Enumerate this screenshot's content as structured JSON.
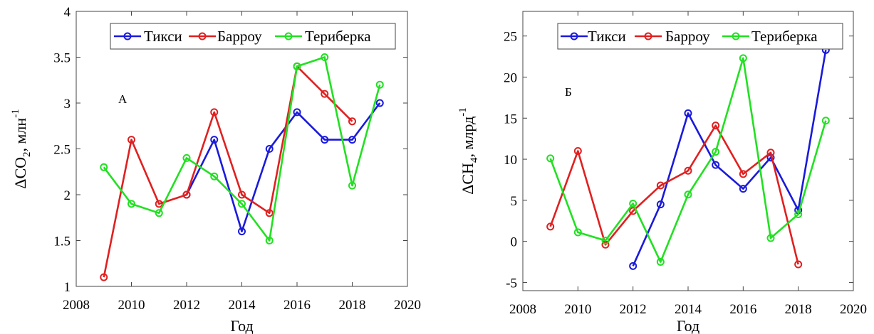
{
  "chart_data": [
    {
      "type": "line",
      "panel_label": "А",
      "xlabel": "Год",
      "ylabel": {
        "base": "ΔCO",
        "sub": "2",
        "rest": ", млн",
        "sup": "-1"
      },
      "xlim": [
        2008,
        2020
      ],
      "ylim": [
        1,
        4
      ],
      "xticks": [
        "2008",
        "2010",
        "2012",
        "2014",
        "2016",
        "2018",
        "2020"
      ],
      "yticks": [
        "1",
        "1.5",
        "2",
        "2.5",
        "3",
        "3.5",
        "4"
      ],
      "grid": false,
      "legend_position": "top",
      "series": [
        {
          "name": "Тикси",
          "color": "#1a1adb",
          "x": [
            2012,
            2013,
            2014,
            2015,
            2016,
            2017,
            2018,
            2019
          ],
          "y": [
            2.0,
            2.6,
            1.6,
            2.5,
            2.9,
            2.6,
            2.6,
            3.0
          ]
        },
        {
          "name": "Барроу",
          "color": "#e02020",
          "x": [
            2009,
            2010,
            2011,
            2012,
            2013,
            2014,
            2015,
            2016,
            2017,
            2018
          ],
          "y": [
            1.1,
            2.6,
            1.9,
            2.0,
            2.9,
            2.0,
            1.8,
            3.4,
            3.1,
            2.8
          ]
        },
        {
          "name": "Териберка",
          "color": "#22e022",
          "x": [
            2009,
            2010,
            2011,
            2012,
            2013,
            2014,
            2015,
            2016,
            2017,
            2018,
            2019
          ],
          "y": [
            2.3,
            1.9,
            1.8,
            2.4,
            2.2,
            1.9,
            1.5,
            3.4,
            3.5,
            2.1,
            3.2
          ]
        }
      ]
    },
    {
      "type": "line",
      "panel_label": "Б",
      "xlabel": "Год",
      "ylabel": {
        "base": "ΔCH",
        "sub": "4",
        "rest": ", млрд",
        "sup": "-1"
      },
      "xlim": [
        2008,
        2020
      ],
      "ylim": [
        -6,
        28
      ],
      "xticks": [
        "2008",
        "2010",
        "2012",
        "2014",
        "2016",
        "2018",
        "2020"
      ],
      "yticks": [
        "-5",
        "0",
        "5",
        "10",
        "15",
        "20",
        "25"
      ],
      "grid": false,
      "legend_position": "top",
      "series": [
        {
          "name": "Тикси",
          "color": "#1a1adb",
          "x": [
            2012,
            2013,
            2014,
            2015,
            2016,
            2017,
            2018,
            2019
          ],
          "y": [
            -3.0,
            4.5,
            15.6,
            9.3,
            6.4,
            10.2,
            3.8,
            23.3
          ]
        },
        {
          "name": "Барроу",
          "color": "#e02020",
          "x": [
            2009,
            2010,
            2011,
            2012,
            2013,
            2014,
            2015,
            2016,
            2017,
            2018
          ],
          "y": [
            1.8,
            11.0,
            -0.4,
            3.7,
            6.8,
            8.6,
            14.1,
            8.2,
            10.8,
            -2.8
          ]
        },
        {
          "name": "Териберка",
          "color": "#22e022",
          "x": [
            2009,
            2010,
            2011,
            2012,
            2013,
            2014,
            2015,
            2016,
            2017,
            2018,
            2019
          ],
          "y": [
            10.1,
            1.1,
            0.1,
            4.6,
            -2.5,
            5.7,
            10.9,
            22.3,
            0.4,
            3.3,
            14.7
          ]
        }
      ]
    }
  ]
}
